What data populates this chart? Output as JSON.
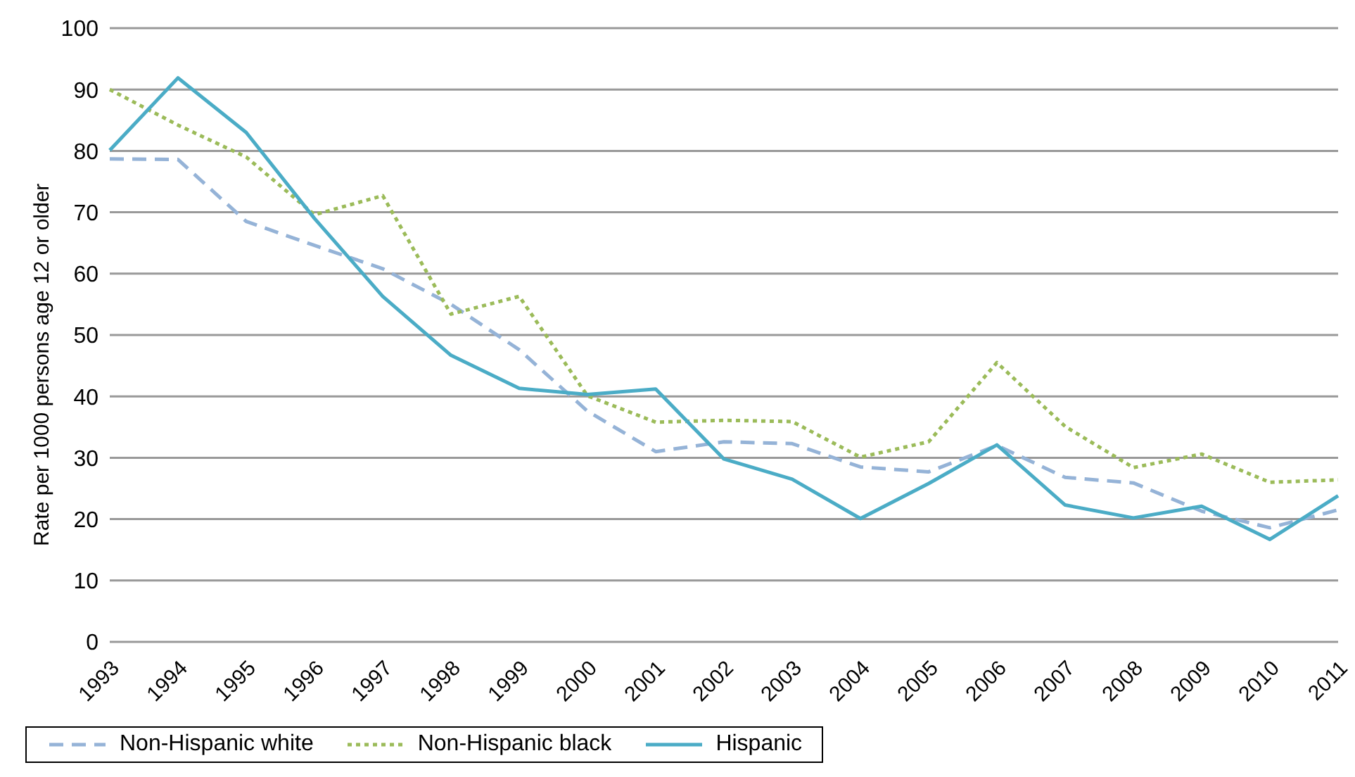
{
  "chart_data": {
    "type": "line",
    "ylabel": "Rate per 1000 persons age 12 or older",
    "categories": [
      "1993",
      "1994",
      "1995",
      "1996",
      "1997",
      "1998",
      "1999",
      "2000",
      "2001",
      "2002",
      "2003",
      "2004",
      "2005",
      "2006",
      "2007",
      "2008",
      "2009",
      "2010",
      "2011"
    ],
    "series": [
      {
        "name": "Non-Hispanic white",
        "color": "#95b3d7",
        "line_style": "dashed",
        "values": [
          78.7,
          78.6,
          68.5,
          64.6,
          60.8,
          55,
          47.6,
          37.6,
          31,
          32.6,
          32.3,
          28.5,
          27.7,
          32,
          26.8,
          25.9,
          21.3,
          18.6,
          21.5
        ]
      },
      {
        "name": "Non-Hispanic black",
        "color": "#9bbb59",
        "line_style": "dotted",
        "values": [
          90,
          84.2,
          79,
          69.6,
          72.7,
          53.4,
          56.3,
          40.1,
          35.8,
          36.1,
          35.9,
          30.1,
          32.6,
          45.5,
          35.1,
          28.4,
          30.6,
          26,
          26.4
        ]
      },
      {
        "name": "Hispanic",
        "color": "#4bacc6",
        "line_style": "solid",
        "values": [
          80.1,
          91.9,
          83,
          69,
          56.3,
          46.7,
          41.3,
          40.3,
          41.2,
          29.8,
          26.5,
          20.1,
          25.8,
          32.1,
          22.3,
          20.2,
          22.1,
          16.7,
          23.8
        ]
      }
    ],
    "ylim": [
      0,
      100
    ],
    "yticks": [
      0,
      10,
      20,
      30,
      40,
      50,
      60,
      70,
      80,
      90,
      100
    ],
    "grid": "y",
    "legend": "bottom",
    "marker": "none"
  }
}
